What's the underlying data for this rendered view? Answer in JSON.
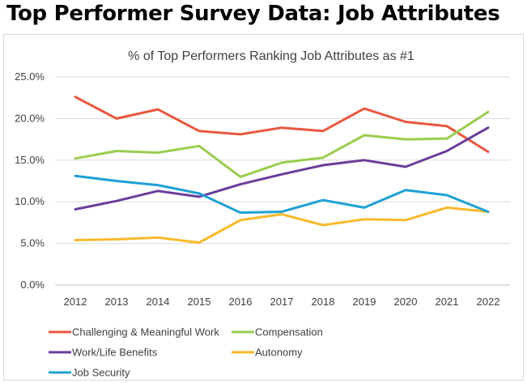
{
  "page_title": "Top Performer Survey Data: Job Attributes",
  "chart_data": {
    "type": "line",
    "title": "% of Top Performers Ranking Job Attributes as #1",
    "xlabel": "",
    "ylabel": "",
    "x": [
      "2012",
      "2013",
      "2014",
      "2015",
      "2016",
      "2017",
      "2018",
      "2019",
      "2020",
      "2021",
      "2022"
    ],
    "ylim": [
      0,
      25
    ],
    "y_ticks": [
      "0.0%",
      "5.0%",
      "10.0%",
      "15.0%",
      "20.0%",
      "25.0%"
    ],
    "y_tick_values": [
      0,
      5,
      10,
      15,
      20,
      25
    ],
    "grid": true,
    "legend_placement": "bottom",
    "series": [
      {
        "name": "Challenging & Meaningful Work",
        "color": "#e9573f",
        "values": [
          22.6,
          20.0,
          21.1,
          18.5,
          18.1,
          18.9,
          18.5,
          21.2,
          19.6,
          19.1,
          16.0
        ]
      },
      {
        "name": "Compensation",
        "color": "#9acd4f",
        "values": [
          15.2,
          16.1,
          15.9,
          16.7,
          13.0,
          14.7,
          15.3,
          18.0,
          17.5,
          17.6,
          20.8
        ]
      },
      {
        "name": "Work/Life Benefits",
        "color": "#6a3d9a",
        "values": [
          9.1,
          10.1,
          11.3,
          10.6,
          12.1,
          13.3,
          14.4,
          15.0,
          14.2,
          16.1,
          18.9
        ]
      },
      {
        "name": "Autonomy",
        "color": "#f9b92b",
        "values": [
          5.4,
          5.5,
          5.7,
          5.1,
          7.8,
          8.5,
          7.2,
          7.9,
          7.8,
          9.3,
          8.8
        ]
      },
      {
        "name": "Job Security",
        "color": "#1fa1d4",
        "values": [
          13.1,
          12.5,
          12.0,
          11.0,
          8.7,
          8.8,
          10.2,
          9.3,
          11.4,
          10.8,
          8.8
        ]
      }
    ]
  }
}
